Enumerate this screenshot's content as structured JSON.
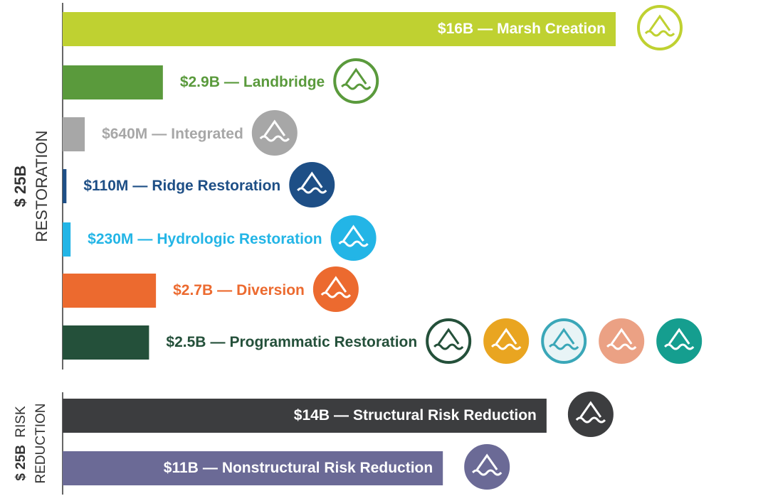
{
  "chart_data": [
    {
      "type": "bar",
      "title": "$ 25B",
      "subtitle": [
        "RESTORATION"
      ],
      "separator": "—",
      "categories": [
        "Marsh Creation",
        "Landbridge",
        "Integrated",
        "Ridge Restoration",
        "Hydrologic Restoration",
        "Diversion",
        "Programmatic Restoration"
      ],
      "values": [
        16,
        2.9,
        0.64,
        0.11,
        0.23,
        2.7,
        2.5
      ],
      "value_labels": [
        "$16B",
        "$2.9B",
        "$640M",
        "$110M",
        "$230M",
        "$2.7B",
        "$2.5B"
      ],
      "colors": [
        "#bfd131",
        "#5a9a3c",
        "#a7a7a7",
        "#1e4f86",
        "#23b5e6",
        "#ec6a2f",
        "#24503a"
      ]
    },
    {
      "type": "bar",
      "title": "$ 25B",
      "subtitle": [
        "RISK",
        "REDUCTION"
      ],
      "separator": "—",
      "categories": [
        "Structural Risk Reduction",
        "Nonstructural Risk Reduction"
      ],
      "values": [
        14,
        11
      ],
      "value_labels": [
        "$14B",
        "$11B"
      ],
      "colors": [
        "#3c3d3f",
        "#6b6a96"
      ]
    }
  ]
}
